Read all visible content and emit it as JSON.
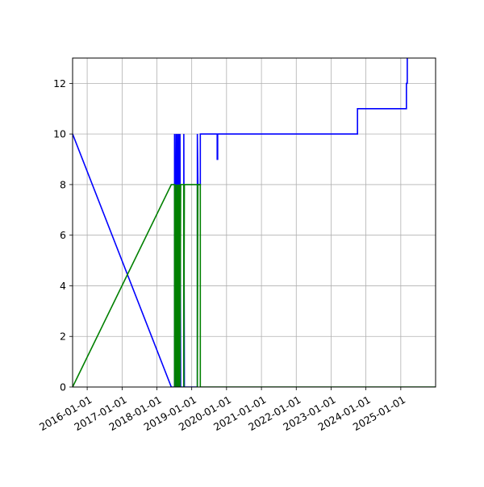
{
  "chart_data": {
    "type": "line",
    "title": "",
    "xlabel": "",
    "ylabel": "",
    "grid": true,
    "legend": "none",
    "xlim": [
      "2015-08-01",
      "2026-01-01"
    ],
    "ylim": [
      0,
      13
    ],
    "x_ticks": [
      "2016-01-01",
      "2017-01-01",
      "2018-01-01",
      "2019-01-01",
      "2020-01-01",
      "2021-01-01",
      "2022-01-01",
      "2023-01-01",
      "2024-01-01",
      "2025-01-01"
    ],
    "y_ticks": [
      0,
      2,
      4,
      6,
      8,
      10,
      12
    ],
    "series": [
      {
        "color": "#0000ff",
        "points": [
          [
            "2015-08-01",
            10
          ],
          [
            "2018-06-01",
            0
          ],
          [
            "2018-07-05",
            0
          ],
          [
            "2018-07-05",
            10
          ],
          [
            "2018-07-12",
            0
          ],
          [
            "2018-07-20",
            10
          ],
          [
            "2018-07-27",
            0
          ],
          [
            "2018-08-03",
            10
          ],
          [
            "2018-08-10",
            0
          ],
          [
            "2018-08-17",
            10
          ],
          [
            "2018-08-24",
            0
          ],
          [
            "2018-08-31",
            10
          ],
          [
            "2018-09-07",
            0
          ],
          [
            "2018-10-10",
            0
          ],
          [
            "2018-10-10",
            10
          ],
          [
            "2018-10-16",
            0
          ],
          [
            "2019-03-01",
            0
          ],
          [
            "2019-03-01",
            10
          ],
          [
            "2019-03-07",
            8
          ],
          [
            "2019-04-01",
            8
          ],
          [
            "2019-04-01",
            10
          ],
          [
            "2019-09-25",
            10
          ],
          [
            "2019-09-25",
            9
          ],
          [
            "2019-09-30",
            9
          ],
          [
            "2019-09-30",
            10
          ],
          [
            "2023-10-05",
            10
          ],
          [
            "2023-10-05",
            11
          ],
          [
            "2025-03-01",
            11
          ],
          [
            "2025-03-01",
            12
          ],
          [
            "2025-03-10",
            12
          ],
          [
            "2025-03-10",
            13
          ]
        ]
      },
      {
        "color": "#008000",
        "points": [
          [
            "2015-08-01",
            0
          ],
          [
            "2018-06-01",
            8
          ],
          [
            "2018-07-05",
            8
          ],
          [
            "2018-07-05",
            0
          ],
          [
            "2018-07-12",
            8
          ],
          [
            "2018-07-20",
            0
          ],
          [
            "2018-07-27",
            8
          ],
          [
            "2018-08-03",
            0
          ],
          [
            "2018-08-10",
            8
          ],
          [
            "2018-08-17",
            0
          ],
          [
            "2018-08-24",
            8
          ],
          [
            "2018-08-31",
            0
          ],
          [
            "2018-09-07",
            8
          ],
          [
            "2018-10-10",
            8
          ],
          [
            "2018-10-10",
            0
          ],
          [
            "2018-10-16",
            8
          ],
          [
            "2019-03-01",
            8
          ],
          [
            "2019-03-01",
            0
          ],
          [
            "2019-03-07",
            8
          ],
          [
            "2019-04-01",
            8
          ],
          [
            "2019-04-01",
            0
          ],
          [
            "2026-01-01",
            0
          ]
        ]
      }
    ]
  }
}
